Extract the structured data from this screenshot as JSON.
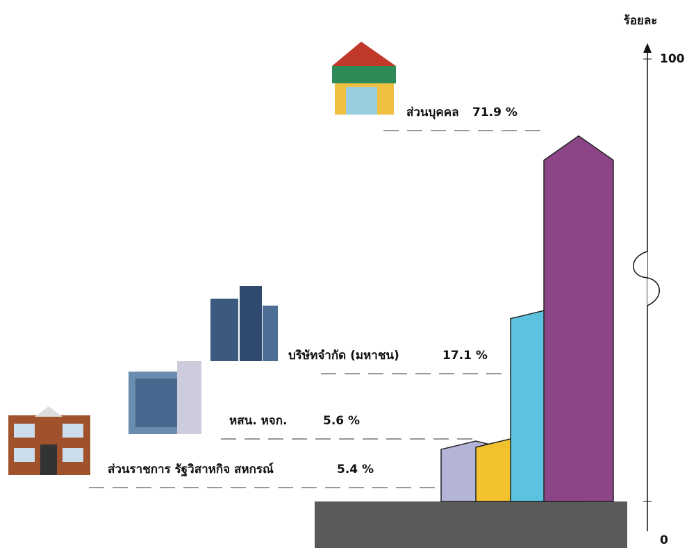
{
  "chart_data": {
    "type": "bar",
    "y_label": "ร้อยละ",
    "categories": [
      "ส่วนราชการ รัฐวิสาหกิจ สหกรณ์",
      "หสน. หจก.",
      "บริษัทจำกัด (มหาชน)",
      "ส่วนบุคคล"
    ],
    "values": [
      5.4,
      5.6,
      17.1,
      71.9
    ],
    "value_labels": [
      "5.4 %",
      "5.6 %",
      "17.1 %",
      "71.9 %"
    ],
    "colors": [
      "#b4b4d8",
      "#f2c12e",
      "#5bc3df",
      "#8c4687"
    ],
    "ylim": [
      0,
      100
    ],
    "yticks": [
      0,
      100
    ],
    "axis_break": true
  }
}
